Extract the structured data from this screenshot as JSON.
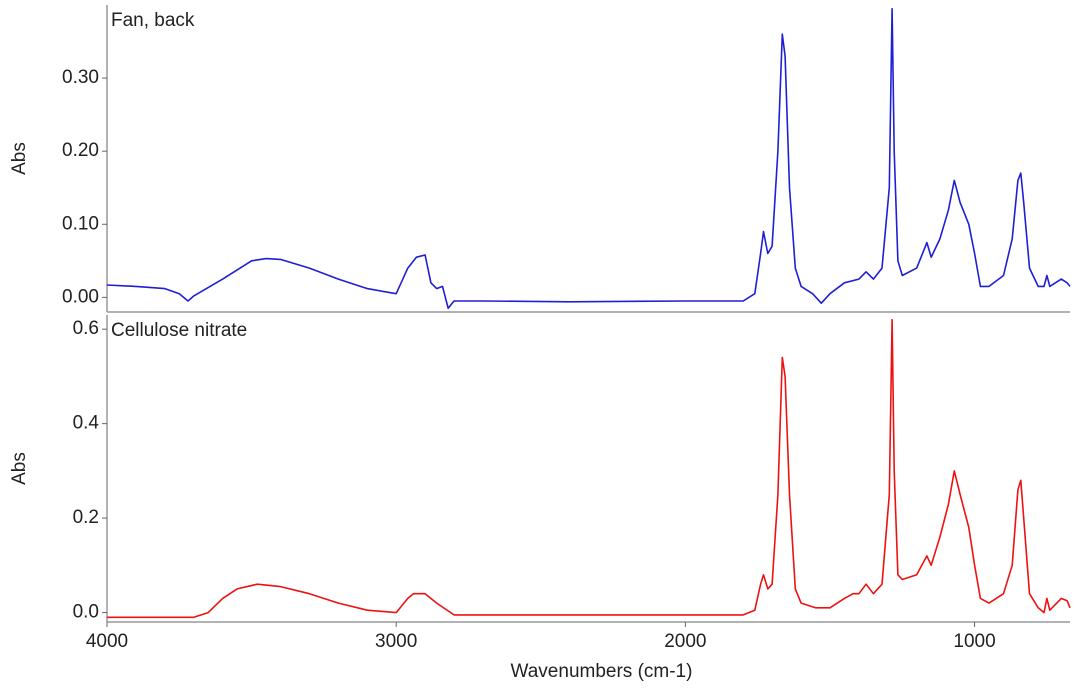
{
  "chart_data": [
    {
      "type": "line",
      "title": "Fan, back",
      "ylabel": "Abs",
      "color": "#1f1fd6",
      "xlim": [
        4000,
        670
      ],
      "ylim": [
        -0.02,
        0.4
      ],
      "yticks": [
        {
          "value": 0,
          "label": "0.00"
        },
        {
          "value": 0.1,
          "label": "0.10"
        },
        {
          "value": 0.2,
          "label": "0.20"
        },
        {
          "value": 0.3,
          "label": "0.30"
        }
      ],
      "x": [
        4000,
        3900,
        3800,
        3750,
        3720,
        3700,
        3600,
        3500,
        3450,
        3400,
        3300,
        3200,
        3100,
        3000,
        2960,
        2930,
        2900,
        2880,
        2860,
        2840,
        2820,
        2800,
        2700,
        2400,
        2000,
        1800,
        1760,
        1740,
        1730,
        1715,
        1700,
        1680,
        1665,
        1655,
        1640,
        1620,
        1600,
        1560,
        1530,
        1500,
        1450,
        1400,
        1375,
        1350,
        1320,
        1295,
        1285,
        1278,
        1265,
        1250,
        1200,
        1165,
        1150,
        1120,
        1090,
        1070,
        1050,
        1020,
        1000,
        980,
        950,
        900,
        870,
        850,
        840,
        830,
        810,
        780,
        760,
        750,
        740,
        700,
        680,
        670
      ],
      "values": [
        0.017,
        0.015,
        0.012,
        0.005,
        -0.005,
        0.002,
        0.025,
        0.05,
        0.053,
        0.052,
        0.04,
        0.025,
        0.012,
        0.005,
        0.04,
        0.055,
        0.058,
        0.02,
        0.012,
        0.015,
        -0.015,
        -0.005,
        -0.005,
        -0.006,
        -0.005,
        -0.005,
        0.005,
        0.06,
        0.09,
        0.06,
        0.07,
        0.2,
        0.36,
        0.33,
        0.15,
        0.04,
        0.015,
        0.005,
        -0.008,
        0.005,
        0.02,
        0.025,
        0.035,
        0.025,
        0.04,
        0.15,
        0.395,
        0.2,
        0.05,
        0.03,
        0.04,
        0.075,
        0.055,
        0.08,
        0.12,
        0.16,
        0.13,
        0.1,
        0.06,
        0.015,
        0.015,
        0.03,
        0.08,
        0.16,
        0.17,
        0.13,
        0.04,
        0.015,
        0.015,
        0.03,
        0.015,
        0.025,
        0.02,
        0.015
      ]
    },
    {
      "type": "line",
      "title": "Cellulose nitrate",
      "ylabel": "Abs",
      "xlabel": "Wavenumbers (cm-1)",
      "color": "#ee1111",
      "xlim": [
        4000,
        670
      ],
      "ylim": [
        -0.02,
        0.63
      ],
      "xticks": [
        4000,
        3000,
        2000,
        1000
      ],
      "yticks": [
        {
          "value": 0,
          "label": "0.0"
        },
        0.2,
        0.4,
        0.6
      ],
      "x": [
        4000,
        3700,
        3650,
        3600,
        3550,
        3480,
        3400,
        3300,
        3200,
        3100,
        3000,
        2960,
        2940,
        2900,
        2860,
        2800,
        2500,
        2000,
        1800,
        1760,
        1740,
        1730,
        1715,
        1700,
        1680,
        1665,
        1655,
        1640,
        1620,
        1600,
        1550,
        1500,
        1450,
        1420,
        1400,
        1375,
        1350,
        1320,
        1295,
        1285,
        1278,
        1265,
        1250,
        1200,
        1165,
        1150,
        1120,
        1090,
        1070,
        1050,
        1020,
        1000,
        980,
        950,
        900,
        870,
        850,
        840,
        830,
        810,
        780,
        760,
        750,
        740,
        700,
        680,
        670
      ],
      "values": [
        -0.01,
        -0.01,
        0.0,
        0.03,
        0.05,
        0.06,
        0.055,
        0.04,
        0.02,
        0.005,
        0.0,
        0.03,
        0.04,
        0.04,
        0.02,
        -0.005,
        -0.005,
        -0.005,
        -0.005,
        0.005,
        0.06,
        0.08,
        0.05,
        0.06,
        0.25,
        0.54,
        0.5,
        0.25,
        0.05,
        0.02,
        0.01,
        0.01,
        0.03,
        0.04,
        0.04,
        0.06,
        0.04,
        0.06,
        0.25,
        0.62,
        0.3,
        0.08,
        0.07,
        0.08,
        0.12,
        0.1,
        0.16,
        0.23,
        0.3,
        0.25,
        0.18,
        0.1,
        0.03,
        0.02,
        0.04,
        0.1,
        0.26,
        0.28,
        0.2,
        0.04,
        0.01,
        0.0,
        0.03,
        0.005,
        0.03,
        0.025,
        0.01
      ]
    }
  ]
}
